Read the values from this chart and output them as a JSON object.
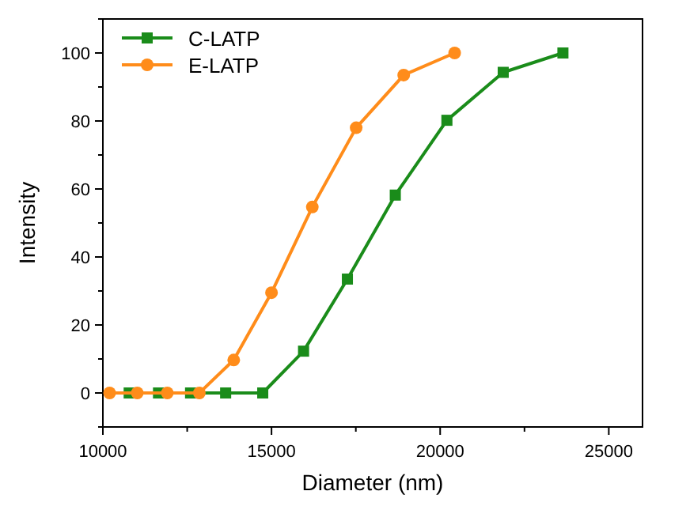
{
  "chart_data": {
    "type": "line",
    "xlabel": "Diameter (nm)",
    "ylabel": "Intensity",
    "xlim": [
      10000,
      26000
    ],
    "xticks": [
      10000,
      15000,
      20000,
      25000
    ],
    "ylim": [
      -10,
      110
    ],
    "yticks": [
      0,
      20,
      40,
      60,
      80,
      100
    ],
    "legend": "top left",
    "line_style": "solid",
    "series": [
      {
        "name": "C-LATP",
        "color": "#1a8c1a",
        "marker": "square",
        "x": [
          10780,
          11650,
          12600,
          13640,
          14740,
          15950,
          17250,
          18670,
          20200,
          21870,
          23640
        ],
        "values": [
          0,
          0,
          0,
          0,
          0,
          12.3,
          33.5,
          58.2,
          80.2,
          94.3,
          100
        ]
      },
      {
        "name": "E-LATP",
        "color": "#ff8c1a",
        "marker": "circle",
        "x": [
          10200,
          11020,
          11910,
          12860,
          13880,
          15000,
          16210,
          17510,
          18920,
          20430
        ],
        "values": [
          0,
          0,
          0,
          0,
          9.7,
          29.5,
          54.7,
          78,
          93.5,
          100
        ]
      }
    ]
  }
}
